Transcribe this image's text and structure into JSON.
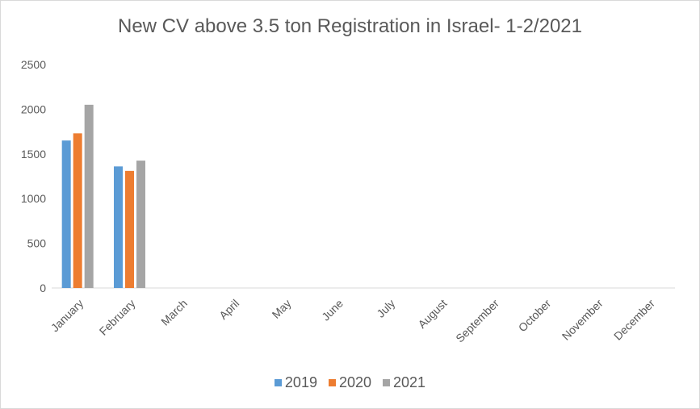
{
  "chart_data": {
    "type": "bar",
    "title": "New CV above 3.5 ton Registration in Israel- 1-2/2021",
    "categories": [
      "January",
      "February",
      "March",
      "April",
      "May",
      "June",
      "July",
      "August",
      "September",
      "October",
      "November",
      "December"
    ],
    "series": [
      {
        "name": "2019",
        "color": "#5b9bd5",
        "values": [
          1650,
          1360,
          null,
          null,
          null,
          null,
          null,
          null,
          null,
          null,
          null,
          null
        ]
      },
      {
        "name": "2020",
        "color": "#ed7d31",
        "values": [
          1730,
          1310,
          null,
          null,
          null,
          null,
          null,
          null,
          null,
          null,
          null,
          null
        ]
      },
      {
        "name": "2021",
        "color": "#a5a5a5",
        "values": [
          2050,
          1425,
          null,
          null,
          null,
          null,
          null,
          null,
          null,
          null,
          null,
          null
        ]
      }
    ],
    "ylim": [
      0,
      2500
    ],
    "yticks": [
      0,
      500,
      1000,
      1500,
      2000,
      2500
    ],
    "xlabel": "",
    "ylabel": "",
    "grid": false,
    "legend": "bottom"
  }
}
